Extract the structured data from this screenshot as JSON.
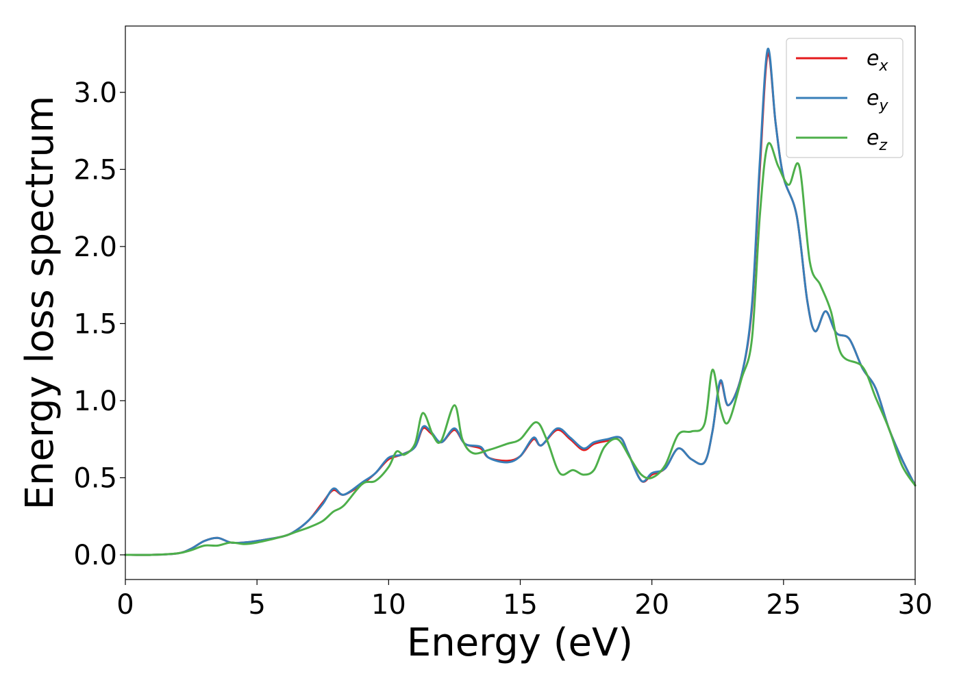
{
  "chart_data": {
    "type": "line",
    "title": "",
    "xlabel": "Energy (eV)",
    "ylabel": "Energy loss spectrum",
    "xlim": [
      0,
      30
    ],
    "ylim": [
      -0.16,
      3.43
    ],
    "xticks": [
      0,
      5,
      10,
      15,
      20,
      25,
      30
    ],
    "xtick_labels": [
      "0",
      "5",
      "10",
      "15",
      "20",
      "25",
      "30"
    ],
    "yticks": [
      0.0,
      0.5,
      1.0,
      1.5,
      2.0,
      2.5,
      3.0
    ],
    "ytick_labels": [
      "0.0",
      "0.5",
      "1.0",
      "1.5",
      "2.0",
      "2.5",
      "3.0"
    ],
    "grid": false,
    "legend_position": "top-right",
    "series": [
      {
        "name": "e_x",
        "legend_base": "e",
        "legend_sub": "x",
        "color": "#e41a1c",
        "points": [
          [
            0,
            0.0
          ],
          [
            1,
            0.0
          ],
          [
            2,
            0.01
          ],
          [
            2.5,
            0.04
          ],
          [
            3,
            0.09
          ],
          [
            3.5,
            0.11
          ],
          [
            4,
            0.08
          ],
          [
            4.5,
            0.08
          ],
          [
            5,
            0.09
          ],
          [
            6,
            0.12
          ],
          [
            6.5,
            0.16
          ],
          [
            7,
            0.23
          ],
          [
            7.5,
            0.34
          ],
          [
            7.9,
            0.42
          ],
          [
            8.3,
            0.39
          ],
          [
            9,
            0.46
          ],
          [
            9.5,
            0.53
          ],
          [
            10,
            0.62
          ],
          [
            10.5,
            0.65
          ],
          [
            11,
            0.7
          ],
          [
            11.3,
            0.82
          ],
          [
            11.6,
            0.79
          ],
          [
            12,
            0.73
          ],
          [
            12.5,
            0.81
          ],
          [
            12.9,
            0.72
          ],
          [
            13.5,
            0.69
          ],
          [
            13.8,
            0.63
          ],
          [
            14.5,
            0.61
          ],
          [
            15,
            0.64
          ],
          [
            15.5,
            0.75
          ],
          [
            15.8,
            0.71
          ],
          [
            16.4,
            0.81
          ],
          [
            16.9,
            0.75
          ],
          [
            17.4,
            0.68
          ],
          [
            17.8,
            0.72
          ],
          [
            18.3,
            0.74
          ],
          [
            18.8,
            0.76
          ],
          [
            19.1,
            0.66
          ],
          [
            19.6,
            0.48
          ],
          [
            20,
            0.52
          ],
          [
            20.5,
            0.56
          ],
          [
            21,
            0.69
          ],
          [
            21.5,
            0.62
          ],
          [
            22,
            0.6
          ],
          [
            22.3,
            0.8
          ],
          [
            22.6,
            1.12
          ],
          [
            22.9,
            0.97
          ],
          [
            23.4,
            1.16
          ],
          [
            23.8,
            1.6
          ],
          [
            24.1,
            2.5
          ],
          [
            24.4,
            3.25
          ],
          [
            24.7,
            2.8
          ],
          [
            25,
            2.45
          ],
          [
            25.5,
            2.2
          ],
          [
            25.9,
            1.65
          ],
          [
            26.2,
            1.45
          ],
          [
            26.6,
            1.58
          ],
          [
            27,
            1.44
          ],
          [
            27.5,
            1.4
          ],
          [
            28,
            1.21
          ],
          [
            28.5,
            1.08
          ],
          [
            29,
            0.82
          ],
          [
            29.5,
            0.62
          ],
          [
            30,
            0.45
          ]
        ]
      },
      {
        "name": "e_y",
        "legend_base": "e",
        "legend_sub": "y",
        "color": "#377eb8",
        "points": [
          [
            0,
            0.0
          ],
          [
            1,
            0.0
          ],
          [
            2,
            0.01
          ],
          [
            2.5,
            0.04
          ],
          [
            3,
            0.09
          ],
          [
            3.5,
            0.11
          ],
          [
            4,
            0.08
          ],
          [
            4.5,
            0.08
          ],
          [
            5,
            0.09
          ],
          [
            6,
            0.12
          ],
          [
            6.5,
            0.16
          ],
          [
            7,
            0.23
          ],
          [
            7.5,
            0.33
          ],
          [
            7.9,
            0.43
          ],
          [
            8.3,
            0.39
          ],
          [
            9,
            0.47
          ],
          [
            9.5,
            0.53
          ],
          [
            10,
            0.63
          ],
          [
            10.5,
            0.65
          ],
          [
            11,
            0.7
          ],
          [
            11.3,
            0.83
          ],
          [
            11.6,
            0.8
          ],
          [
            12,
            0.73
          ],
          [
            12.5,
            0.82
          ],
          [
            12.9,
            0.72
          ],
          [
            13.5,
            0.7
          ],
          [
            13.8,
            0.63
          ],
          [
            14.5,
            0.6
          ],
          [
            15,
            0.64
          ],
          [
            15.5,
            0.76
          ],
          [
            15.8,
            0.71
          ],
          [
            16.4,
            0.82
          ],
          [
            16.9,
            0.76
          ],
          [
            17.4,
            0.69
          ],
          [
            17.8,
            0.73
          ],
          [
            18.3,
            0.75
          ],
          [
            18.8,
            0.76
          ],
          [
            19.1,
            0.66
          ],
          [
            19.6,
            0.48
          ],
          [
            20,
            0.53
          ],
          [
            20.5,
            0.56
          ],
          [
            21,
            0.69
          ],
          [
            21.5,
            0.62
          ],
          [
            22,
            0.6
          ],
          [
            22.3,
            0.8
          ],
          [
            22.6,
            1.13
          ],
          [
            22.9,
            0.97
          ],
          [
            23.4,
            1.16
          ],
          [
            23.8,
            1.62
          ],
          [
            24.1,
            2.55
          ],
          [
            24.4,
            3.28
          ],
          [
            24.7,
            2.8
          ],
          [
            25,
            2.45
          ],
          [
            25.5,
            2.2
          ],
          [
            25.9,
            1.65
          ],
          [
            26.2,
            1.45
          ],
          [
            26.6,
            1.58
          ],
          [
            27,
            1.44
          ],
          [
            27.5,
            1.4
          ],
          [
            28,
            1.21
          ],
          [
            28.5,
            1.08
          ],
          [
            29,
            0.82
          ],
          [
            29.5,
            0.62
          ],
          [
            30,
            0.45
          ]
        ]
      },
      {
        "name": "e_z",
        "legend_base": "e",
        "legend_sub": "z",
        "color": "#4daf4a",
        "points": [
          [
            0,
            0.0
          ],
          [
            1,
            0.0
          ],
          [
            2,
            0.01
          ],
          [
            2.5,
            0.03
          ],
          [
            3,
            0.06
          ],
          [
            3.5,
            0.06
          ],
          [
            4,
            0.08
          ],
          [
            4.5,
            0.07
          ],
          [
            5,
            0.08
          ],
          [
            6,
            0.12
          ],
          [
            6.5,
            0.15
          ],
          [
            7,
            0.18
          ],
          [
            7.5,
            0.22
          ],
          [
            7.9,
            0.28
          ],
          [
            8.3,
            0.32
          ],
          [
            9,
            0.46
          ],
          [
            9.5,
            0.48
          ],
          [
            10,
            0.57
          ],
          [
            10.3,
            0.67
          ],
          [
            10.6,
            0.65
          ],
          [
            11,
            0.72
          ],
          [
            11.3,
            0.92
          ],
          [
            11.7,
            0.77
          ],
          [
            12,
            0.74
          ],
          [
            12.5,
            0.97
          ],
          [
            12.8,
            0.75
          ],
          [
            13.2,
            0.66
          ],
          [
            13.8,
            0.68
          ],
          [
            14.5,
            0.72
          ],
          [
            15,
            0.75
          ],
          [
            15.6,
            0.86
          ],
          [
            16,
            0.75
          ],
          [
            16.5,
            0.53
          ],
          [
            17,
            0.55
          ],
          [
            17.4,
            0.52
          ],
          [
            17.8,
            0.55
          ],
          [
            18.2,
            0.7
          ],
          [
            18.7,
            0.75
          ],
          [
            19.2,
            0.62
          ],
          [
            19.6,
            0.52
          ],
          [
            20,
            0.5
          ],
          [
            20.5,
            0.58
          ],
          [
            21,
            0.78
          ],
          [
            21.5,
            0.8
          ],
          [
            22,
            0.85
          ],
          [
            22.3,
            1.2
          ],
          [
            22.6,
            0.95
          ],
          [
            22.9,
            0.86
          ],
          [
            23.4,
            1.14
          ],
          [
            23.8,
            1.4
          ],
          [
            24.1,
            2.2
          ],
          [
            24.4,
            2.66
          ],
          [
            24.8,
            2.52
          ],
          [
            25.2,
            2.4
          ],
          [
            25.6,
            2.52
          ],
          [
            26,
            1.9
          ],
          [
            26.4,
            1.75
          ],
          [
            26.8,
            1.58
          ],
          [
            27.2,
            1.3
          ],
          [
            28,
            1.22
          ],
          [
            28.5,
            1.02
          ],
          [
            29,
            0.82
          ],
          [
            29.5,
            0.58
          ],
          [
            30,
            0.45
          ]
        ]
      }
    ]
  }
}
